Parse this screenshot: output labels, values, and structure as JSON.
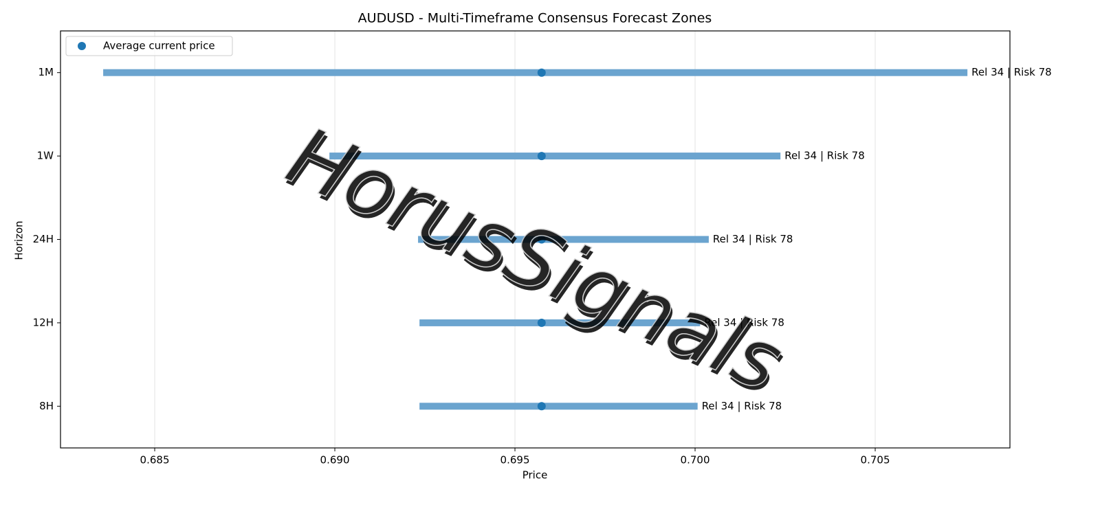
{
  "chart_data": {
    "type": "range",
    "title": "AUDUSD - Multi-Timeframe Consensus Forecast Zones",
    "xlabel": "Price",
    "ylabel": "Horizon",
    "categories": [
      "1M",
      "1W",
      "24H",
      "12H",
      "8H"
    ],
    "ranges": {
      "low": [
        0.68357,
        0.68985,
        0.69231,
        0.69235,
        0.69235
      ],
      "high": [
        0.70756,
        0.70237,
        0.70038,
        0.70014,
        0.70007
      ],
      "color": "#6ba4cf"
    },
    "series": [
      {
        "name": "Average current price",
        "color": "#1f77b4",
        "values": [
          0.69574,
          0.69574,
          0.69574,
          0.69574,
          0.69574
        ]
      }
    ],
    "labels": [
      "Rel 34 | Risk 78",
      "Rel 34 | Risk 78",
      "Rel 34 | Risk 78",
      "Rel 34 | Risk 78",
      "Rel 34 | Risk 78"
    ],
    "xlim": [
      0.682385,
      0.70874
    ],
    "xticks": [
      0.685,
      {
        "value": 0.69,
        "label": "0.690"
      },
      0.695,
      {
        "value": 0.7,
        "label": "0.700"
      },
      0.705
    ],
    "grid": true,
    "legend": "upper left",
    "watermark": "HorusSignals"
  }
}
